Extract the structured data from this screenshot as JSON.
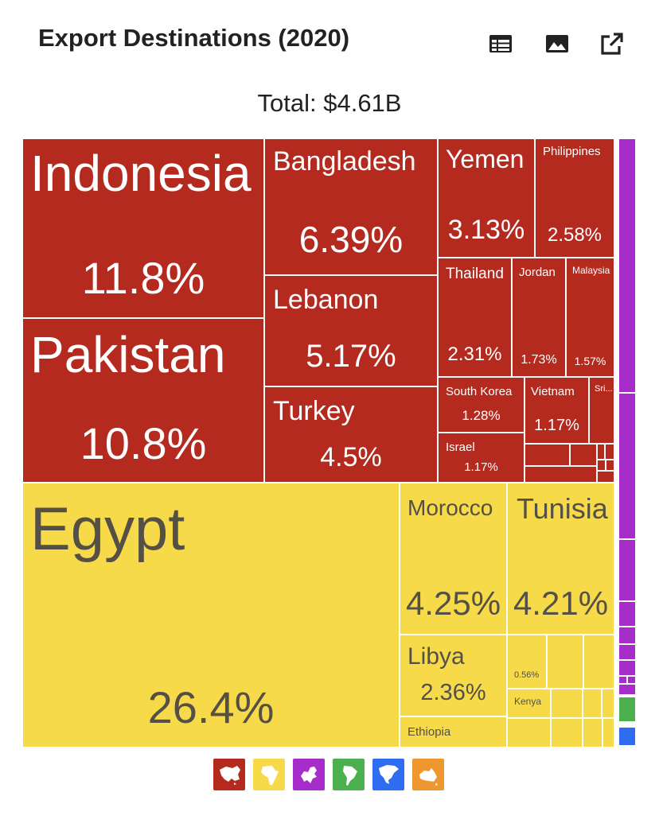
{
  "header": {
    "title": "Export Destinations (2020)",
    "total": "Total: $4.61B"
  },
  "toolbar": {
    "table_icon": "table-icon",
    "image_icon": "image-icon",
    "share_icon": "external-link-icon"
  },
  "colors": {
    "asia": "#B52A1F",
    "africa": "#F6DA4A",
    "europe": "#A62DC9",
    "south_america": "#4CAF50",
    "north_america": "#2E6DF0",
    "oceania": "#F0962E"
  },
  "chart_data": {
    "type": "treemap",
    "title": "Export Destinations (2020)",
    "total": "Total: $4.61B",
    "unit": "% of exports",
    "series": [
      {
        "name": "Asia",
        "items": [
          {
            "label": "Indonesia",
            "value": 11.8,
            "value_label": "11.8%"
          },
          {
            "label": "Pakistan",
            "value": 10.8,
            "value_label": "10.8%"
          },
          {
            "label": "Bangladesh",
            "value": 6.39,
            "value_label": "6.39%"
          },
          {
            "label": "Lebanon",
            "value": 5.17,
            "value_label": "5.17%"
          },
          {
            "label": "Turkey",
            "value": 4.5,
            "value_label": "4.5%"
          },
          {
            "label": "Yemen",
            "value": 3.13,
            "value_label": "3.13%"
          },
          {
            "label": "Philippines",
            "value": 2.58,
            "value_label": "2.58%"
          },
          {
            "label": "Thailand",
            "value": 2.31,
            "value_label": "2.31%"
          },
          {
            "label": "Jordan",
            "value": 1.73,
            "value_label": "1.73%"
          },
          {
            "label": "Malaysia",
            "value": 1.57,
            "value_label": "1.57%"
          },
          {
            "label": "South Korea",
            "value": 1.28,
            "value_label": "1.28%"
          },
          {
            "label": "Vietnam",
            "value": 1.17,
            "value_label": "1.17%"
          },
          {
            "label": "Israel",
            "value": 1.17,
            "value_label": "1.17%"
          },
          {
            "label": "Sri...",
            "value": null,
            "value_label": ""
          }
        ]
      },
      {
        "name": "Africa",
        "items": [
          {
            "label": "Egypt",
            "value": 26.4,
            "value_label": "26.4%"
          },
          {
            "label": "Morocco",
            "value": 4.25,
            "value_label": "4.25%"
          },
          {
            "label": "Tunisia",
            "value": 4.21,
            "value_label": "4.21%"
          },
          {
            "label": "Libya",
            "value": 2.36,
            "value_label": "2.36%"
          },
          {
            "label": "Ethiopia",
            "value": null,
            "value_label": ""
          },
          {
            "label": "",
            "value": 0.56,
            "value_label": "0.56%"
          },
          {
            "label": "Kenya",
            "value": null,
            "value_label": ""
          }
        ]
      }
    ]
  },
  "legend": {
    "continents": [
      {
        "name": "asia",
        "icon": "asia-map-icon",
        "color": "#B52A1F"
      },
      {
        "name": "africa",
        "icon": "africa-map-icon",
        "color": "#F6DA4A"
      },
      {
        "name": "europe",
        "icon": "europe-map-icon",
        "color": "#A62DC9"
      },
      {
        "name": "south_america",
        "icon": "south-america-map-icon",
        "color": "#4CAF50"
      },
      {
        "name": "north_america",
        "icon": "north-america-map-icon",
        "color": "#2E6DF0"
      },
      {
        "name": "oceania",
        "icon": "oceania-map-icon",
        "color": "#F0962E"
      }
    ]
  }
}
